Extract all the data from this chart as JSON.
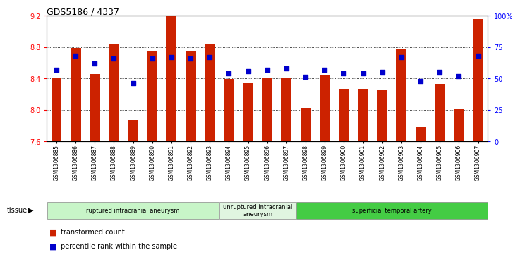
{
  "title": "GDS5186 / 4337",
  "samples": [
    "GSM1306885",
    "GSM1306886",
    "GSM1306887",
    "GSM1306888",
    "GSM1306889",
    "GSM1306890",
    "GSM1306891",
    "GSM1306892",
    "GSM1306893",
    "GSM1306894",
    "GSM1306895",
    "GSM1306896",
    "GSM1306897",
    "GSM1306898",
    "GSM1306899",
    "GSM1306900",
    "GSM1306901",
    "GSM1306902",
    "GSM1306903",
    "GSM1306904",
    "GSM1306905",
    "GSM1306906",
    "GSM1306907"
  ],
  "transformed_count": [
    8.4,
    8.79,
    8.46,
    8.84,
    7.87,
    8.75,
    9.19,
    8.75,
    8.83,
    8.39,
    8.34,
    8.4,
    8.4,
    8.02,
    8.45,
    8.27,
    8.27,
    8.26,
    8.78,
    7.78,
    8.33,
    8.01,
    9.16
  ],
  "percentile_rank": [
    57,
    68,
    62,
    66,
    46,
    66,
    67,
    66,
    67,
    54,
    56,
    57,
    58,
    51,
    57,
    54,
    54,
    55,
    67,
    48,
    55,
    52,
    68
  ],
  "groups": [
    {
      "label": "ruptured intracranial aneurysm",
      "start": 0,
      "end": 9,
      "color": "#c8f5c8"
    },
    {
      "label": "unruptured intracranial\naneurysm",
      "start": 9,
      "end": 13,
      "color": "#e0f5e0"
    },
    {
      "label": "superficial temporal artery",
      "start": 13,
      "end": 23,
      "color": "#44cc44"
    }
  ],
  "bar_color": "#cc2200",
  "dot_color": "#0000cc",
  "ylim_left": [
    7.6,
    9.2
  ],
  "ylim_right": [
    0,
    100
  ],
  "yticks_left": [
    7.6,
    8.0,
    8.4,
    8.8,
    9.2
  ],
  "yticks_right": [
    0,
    25,
    50,
    75,
    100
  ],
  "ytick_labels_right": [
    "0",
    "25",
    "50",
    "75",
    "100%"
  ],
  "grid_values": [
    8.0,
    8.4,
    8.8
  ],
  "plot_bg": "#ffffff",
  "fig_bg": "#ffffff",
  "tissue_label": "tissue",
  "legend_bar_label": "transformed count",
  "legend_dot_label": "percentile rank within the sample",
  "bar_width": 0.55
}
